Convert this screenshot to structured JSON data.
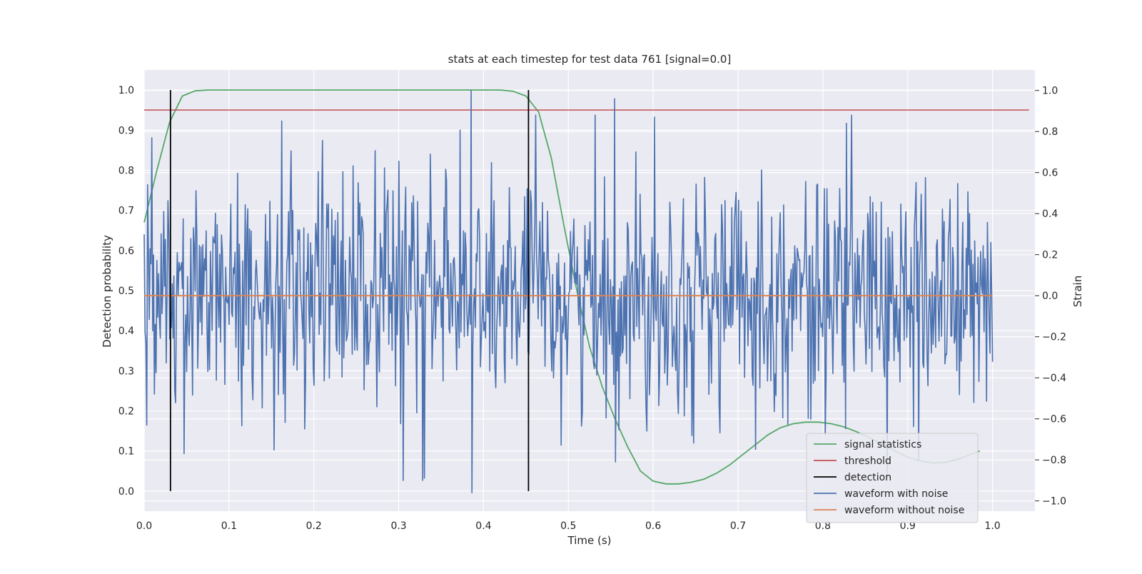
{
  "chart_data": {
    "type": "line",
    "title": "stats at each timestep for test data 761 [signal=0.0]",
    "xlabel": "Time (s)",
    "ylabel": "Detection probability",
    "y2label": "Strain",
    "xlim": [
      0.0,
      1.05
    ],
    "ylim": [
      -0.05,
      1.05
    ],
    "y2lim": [
      -1.05,
      1.1
    ],
    "x_ticks": [
      "0.0",
      "0.1",
      "0.2",
      "0.3",
      "0.4",
      "0.5",
      "0.6",
      "0.7",
      "0.8",
      "0.9",
      "1.0"
    ],
    "y_ticks": [
      "0.0",
      "0.1",
      "0.2",
      "0.3",
      "0.4",
      "0.5",
      "0.6",
      "0.7",
      "0.8",
      "0.9",
      "1.0"
    ],
    "y2_ticks": [
      "−1.0",
      "−0.8",
      "−0.6",
      "−0.4",
      "−0.2",
      "0.0",
      "0.2",
      "0.4",
      "0.6",
      "0.8",
      "1.0"
    ],
    "grid": true,
    "legend_position": "bottom-right",
    "series": [
      {
        "name": "signal statistics",
        "axis": "left",
        "color": "#55a868",
        "x": [
          0.0,
          0.015,
          0.03,
          0.045,
          0.06,
          0.075,
          0.1,
          0.2,
          0.3,
          0.4,
          0.42,
          0.435,
          0.45,
          0.465,
          0.48,
          0.495,
          0.51,
          0.525,
          0.54,
          0.555,
          0.57,
          0.585,
          0.6,
          0.615,
          0.63,
          0.645,
          0.66,
          0.675,
          0.69,
          0.705,
          0.72,
          0.735,
          0.75,
          0.765,
          0.78,
          0.795,
          0.81,
          0.825,
          0.84,
          0.855,
          0.87,
          0.885,
          0.9,
          0.915,
          0.93,
          0.945,
          0.96,
          0.975,
          0.985
        ],
        "y": [
          0.67,
          0.8,
          0.92,
          0.985,
          0.998,
          1.0,
          1.0,
          1.0,
          1.0,
          1.0,
          1.0,
          0.997,
          0.985,
          0.945,
          0.83,
          0.66,
          0.5,
          0.36,
          0.26,
          0.18,
          0.11,
          0.05,
          0.025,
          0.018,
          0.018,
          0.022,
          0.03,
          0.045,
          0.065,
          0.09,
          0.115,
          0.14,
          0.158,
          0.168,
          0.172,
          0.172,
          0.168,
          0.16,
          0.148,
          0.133,
          0.117,
          0.1,
          0.085,
          0.075,
          0.07,
          0.072,
          0.08,
          0.092,
          0.1
        ]
      },
      {
        "name": "threshold",
        "axis": "left",
        "color": "#c44e52",
        "x": [
          0.0,
          1.043
        ],
        "y": [
          0.95,
          0.95
        ]
      },
      {
        "name": "detection",
        "axis": "left",
        "color": "#000000",
        "type": "vlines",
        "x": [
          0.031,
          0.453
        ],
        "y": [
          0.0,
          1.0
        ]
      },
      {
        "name": "waveform with noise",
        "axis": "right",
        "color": "#4c72b0",
        "x_range": [
          0.0,
          1.0
        ],
        "n_points": 1000,
        "noise_std": 0.28,
        "notable_peaks": [
          {
            "x": 0.003,
            "y": -0.63
          },
          {
            "x": 0.009,
            "y": 0.77
          },
          {
            "x": 0.047,
            "y": -0.77
          },
          {
            "x": 0.385,
            "y": 1.0
          },
          {
            "x": 0.386,
            "y": -0.96
          },
          {
            "x": 0.555,
            "y": 0.96
          },
          {
            "x": 0.556,
            "y": -0.81
          },
          {
            "x": 0.602,
            "y": 0.87
          },
          {
            "x": 0.828,
            "y": 0.84
          },
          {
            "x": 0.913,
            "y": -0.8
          },
          {
            "x": 0.998,
            "y": 0.26
          }
        ]
      },
      {
        "name": "waveform without noise",
        "axis": "right",
        "color": "#dd8452",
        "x": [
          0.0,
          1.0
        ],
        "y": [
          0.0,
          0.0
        ]
      }
    ]
  }
}
